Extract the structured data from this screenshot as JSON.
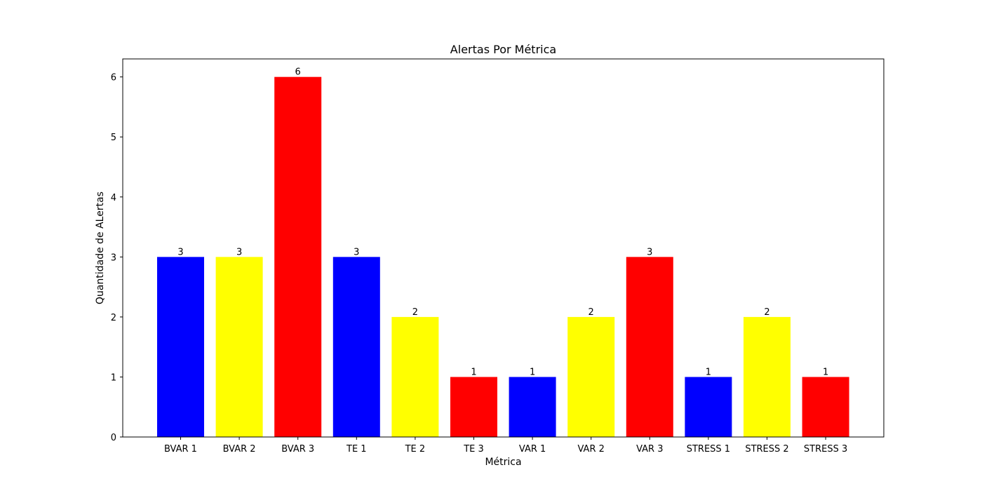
{
  "chart_data": {
    "type": "bar",
    "title": "Alertas Por Métrica",
    "xlabel": "Métrica",
    "ylabel": "Quantidade de ALertas",
    "categories": [
      "BVAR 1",
      "BVAR 2",
      "BVAR 3",
      "TE 1",
      "TE 2",
      "TE 3",
      "VAR 1",
      "VAR 2",
      "VAR 3",
      "STRESS 1",
      "STRESS 2",
      "STRESS 3"
    ],
    "values": [
      3,
      3,
      6,
      3,
      2,
      1,
      1,
      2,
      3,
      1,
      2,
      1
    ],
    "bar_colors": [
      "#0000ff",
      "#ffff00",
      "#ff0000",
      "#0000ff",
      "#ffff00",
      "#ff0000",
      "#0000ff",
      "#ffff00",
      "#ff0000",
      "#0000ff",
      "#ffff00",
      "#ff0000"
    ],
    "yticks": [
      0,
      1,
      2,
      3,
      4,
      5,
      6
    ],
    "ylim": [
      0,
      6.3
    ],
    "grid": false,
    "data_labels": true
  }
}
